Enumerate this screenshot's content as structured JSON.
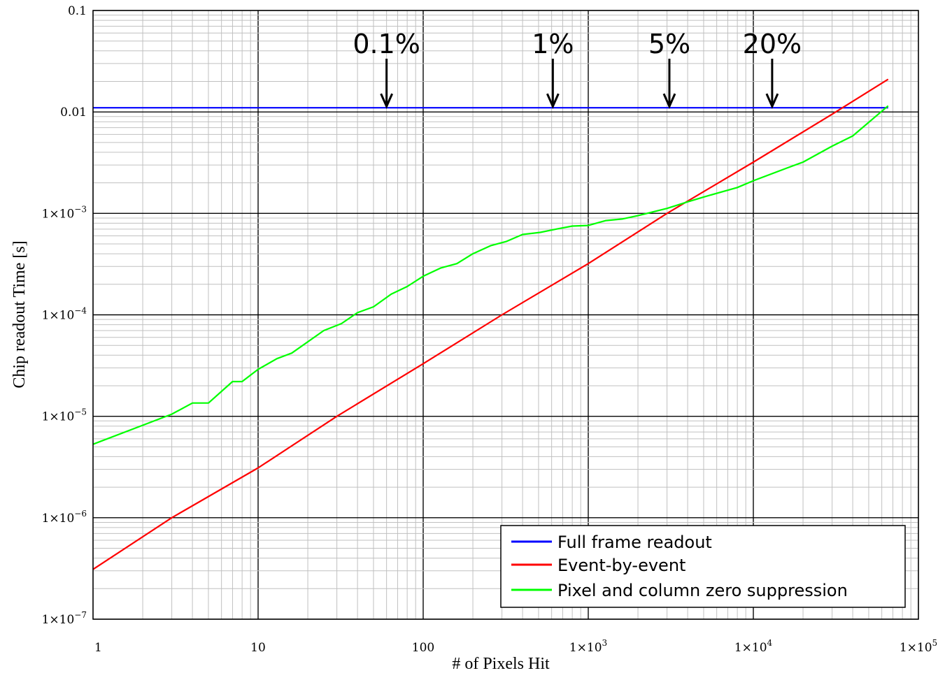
{
  "chart_data": {
    "type": "line",
    "xlabel": "# of Pixels Hit",
    "ylabel": "Chip readout Time [s]",
    "xscale": "log",
    "yscale": "log",
    "xlim": [
      1,
      100000
    ],
    "ylim": [
      1e-07,
      0.1
    ],
    "grid": true,
    "legend_position": "bottom-right",
    "x_ticks": [
      {
        "value": 1,
        "label": "1"
      },
      {
        "value": 10,
        "label": "10"
      },
      {
        "value": 100,
        "label": "100"
      },
      {
        "value": 1000,
        "mant": "1×10",
        "exp": "3"
      },
      {
        "value": 10000,
        "mant": "1×10",
        "exp": "4"
      },
      {
        "value": 100000,
        "mant": "1×10",
        "exp": "5"
      }
    ],
    "y_ticks": [
      {
        "value": 0.1,
        "label": "0.1"
      },
      {
        "value": 0.01,
        "label": "0.01"
      },
      {
        "value": 0.001,
        "mant": "1×10",
        "exp": "−3"
      },
      {
        "value": 0.0001,
        "mant": "1×10",
        "exp": "−4"
      },
      {
        "value": 1e-05,
        "mant": "1×10",
        "exp": "−5"
      },
      {
        "value": 1e-06,
        "mant": "1×10",
        "exp": "−6"
      },
      {
        "value": 1e-07,
        "mant": "1×10",
        "exp": "−7"
      }
    ],
    "series": [
      {
        "name": "Full frame readout",
        "color": "#0000ff",
        "x": [
          1,
          65536
        ],
        "y": [
          0.011,
          0.011
        ]
      },
      {
        "name": "Event-by-event",
        "color": "#ff0000",
        "x": [
          1,
          3,
          10,
          30,
          100,
          300,
          1000,
          3000,
          10000,
          30000,
          65536
        ],
        "y": [
          3.1e-07,
          1e-06,
          3.1e-06,
          1e-05,
          3.3e-05,
          0.0001,
          0.00032,
          0.001,
          0.0032,
          0.0095,
          0.021
        ]
      },
      {
        "name": "Pixel and column zero suppression",
        "color": "#00ff00",
        "x": [
          1,
          3,
          4,
          5,
          7,
          8,
          10,
          13,
          16,
          25,
          32,
          40,
          50,
          64,
          80,
          100,
          128,
          160,
          200,
          256,
          320,
          400,
          512,
          640,
          800,
          1000,
          1280,
          1600,
          2000,
          3000,
          4000,
          5000,
          8000,
          10000,
          16000,
          20000,
          30000,
          40000,
          65536
        ],
        "y": [
          5.3e-06,
          1.05e-05,
          1.35e-05,
          1.35e-05,
          2.2e-05,
          2.2e-05,
          2.9e-05,
          3.7e-05,
          4.2e-05,
          7e-05,
          8.2e-05,
          0.000105,
          0.00012,
          0.00016,
          0.00019,
          0.00024,
          0.00029,
          0.00032,
          0.0004,
          0.00048,
          0.00053,
          0.00062,
          0.00065,
          0.0007,
          0.00075,
          0.00076,
          0.00085,
          0.00088,
          0.00095,
          0.00112,
          0.0013,
          0.00145,
          0.0018,
          0.0021,
          0.0028,
          0.0032,
          0.0046,
          0.0058,
          0.0115
        ]
      }
    ],
    "annotations": [
      {
        "label": "0.1%",
        "x": 60
      },
      {
        "label": "1%",
        "x": 610
      },
      {
        "label": "5%",
        "x": 3100
      },
      {
        "label": "20%",
        "x": 13000
      }
    ]
  }
}
